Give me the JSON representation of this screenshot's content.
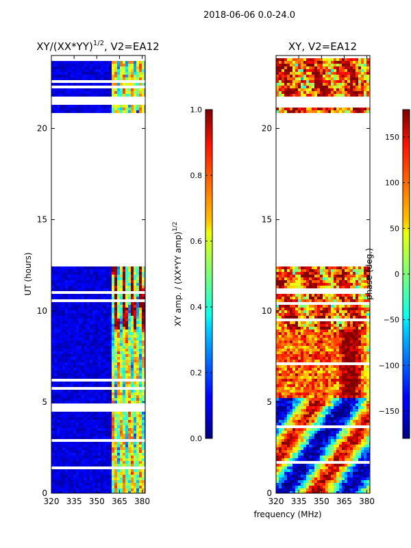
{
  "suptitle": "2018-06-06 0.0-24.0",
  "shared_xlabel": "frequency (MHz)",
  "chart_data": [
    {
      "type": "heatmap",
      "title_main": "XY/(XX*YY)",
      "title_sup": "1/2",
      "title_rest": ", V2=EA12",
      "ylabel": "UT (hours)",
      "xlim": [
        320,
        382
      ],
      "ylim": [
        0,
        24
      ],
      "xticks": [
        320,
        335,
        350,
        365,
        380
      ],
      "yticks": [
        0,
        5,
        10,
        15,
        20
      ],
      "colorbar": {
        "label_main": "XY amp. / (XX*YY amp)",
        "label_sup": "1/2",
        "vmin": 0.0,
        "vmax": 1.0,
        "ticks": [
          0.0,
          0.2,
          0.4,
          0.6,
          0.8,
          1.0
        ],
        "tick_labels": [
          "0.0",
          "0.2",
          "0.4",
          "0.6",
          "0.8",
          "1.0"
        ],
        "colormap": "jet"
      },
      "data_blocks_ut": [
        [
          0.0,
          12.5
        ],
        [
          20.8,
          21.3
        ],
        [
          21.8,
          23.8
        ]
      ],
      "bright_channel_range_mhz": [
        360,
        382
      ]
    },
    {
      "type": "heatmap",
      "title": "XY, V2=EA12",
      "xlim": [
        320,
        382
      ],
      "ylim": [
        0,
        24
      ],
      "xticks": [
        320,
        335,
        350,
        365,
        380
      ],
      "yticks": [
        0,
        5,
        10,
        15,
        20
      ],
      "colorbar": {
        "label": "phase (deg.)",
        "vmin": -180,
        "vmax": 180,
        "ticks": [
          -150,
          -100,
          -50,
          0,
          50,
          100,
          150
        ],
        "tick_labels": [
          "−150",
          "−100",
          "−50",
          "0",
          "50",
          "100",
          "150"
        ],
        "colormap": "jet"
      },
      "data_blocks_ut": [
        [
          0.0,
          12.5
        ],
        [
          20.8,
          21.3
        ],
        [
          21.8,
          23.8
        ]
      ]
    }
  ]
}
